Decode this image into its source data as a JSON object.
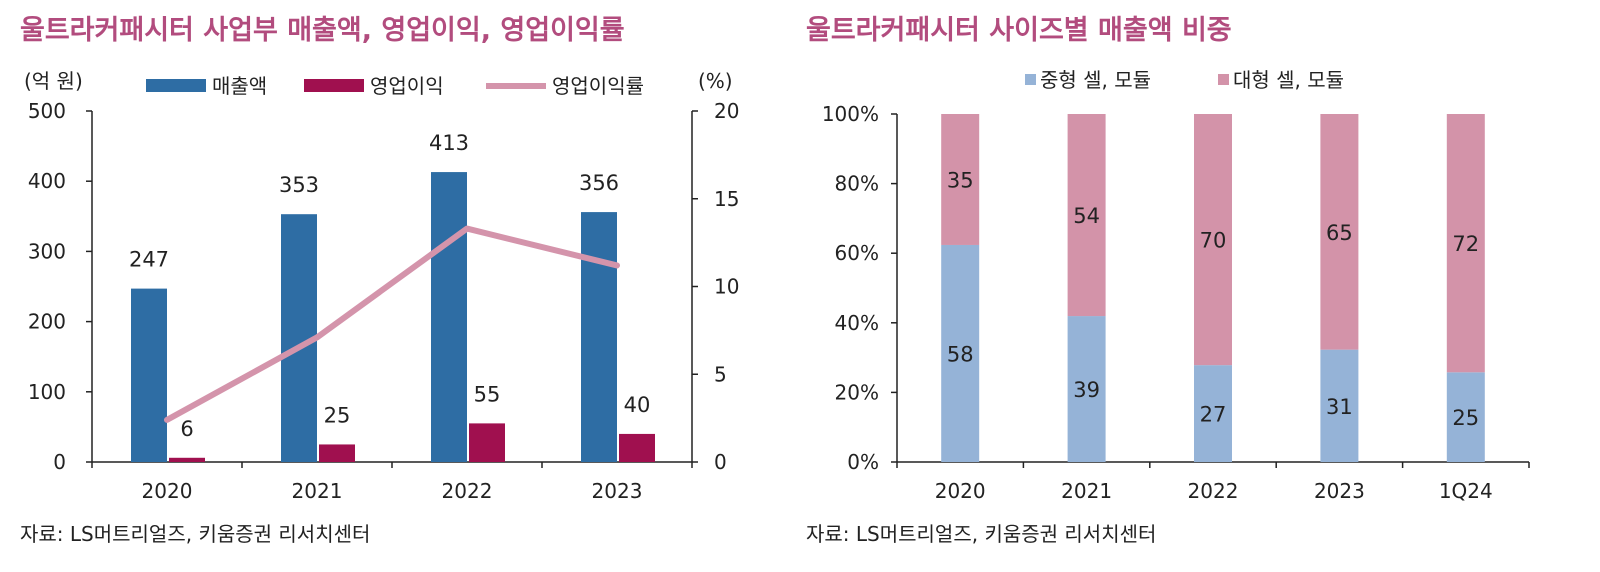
{
  "left": {
    "title": "울트라커패시터 사업부 매출액, 영업이익, 영업이익률",
    "source": "자료: LS머트리얼즈, 키움증권 리서치센터"
  },
  "right": {
    "title": "울트라커패시터 사이즈별 매출액 비중",
    "source": "자료: LS머트리얼즈, 키움증권 리서치센터"
  },
  "colors": {
    "title": "#b24c7e",
    "revenue": "#2e6da4",
    "op_income": "#a0104f",
    "op_margin": "#d494ab",
    "mid_cell": "#95b3d7",
    "large_cell": "#d393a9"
  },
  "chart_data": [
    {
      "type": "bar",
      "title": "울트라커패시터 사업부 매출액, 영업이익, 영업이익률",
      "categories": [
        "2020",
        "2021",
        "2022",
        "2023"
      ],
      "series": [
        {
          "name": "매출액",
          "axis": "left",
          "values": [
            247,
            353,
            413,
            356
          ],
          "labels": [
            "247",
            "353",
            "413",
            "356"
          ]
        },
        {
          "name": "영업이익",
          "axis": "left",
          "values": [
            6,
            25,
            55,
            40
          ],
          "labels": [
            "6",
            "25",
            "55",
            "40"
          ]
        },
        {
          "name": "영업이익률",
          "type": "line",
          "axis": "right",
          "values": [
            2.4,
            7.1,
            13.3,
            11.2
          ]
        }
      ],
      "ylabel": "(억 원)",
      "y2label": "(%)",
      "ylim": [
        0,
        500
      ],
      "yticks": [
        "0",
        "100",
        "200",
        "300",
        "400",
        "500"
      ],
      "y2lim": [
        0,
        20
      ],
      "y2ticks": [
        "0",
        "5",
        "10",
        "15",
        "20"
      ],
      "legend": "top-center",
      "grid": false
    },
    {
      "type": "bar",
      "stacked": true,
      "title": "울트라커패시터 사이즈별 매출액 비중",
      "categories": [
        "2020",
        "2021",
        "2022",
        "2023",
        "1Q24"
      ],
      "series": [
        {
          "name": "중형 셀, 모듈",
          "values": [
            58,
            39,
            27,
            31,
            25
          ],
          "labels": [
            "58",
            "39",
            "27",
            "31",
            "25"
          ]
        },
        {
          "name": "대형 셀, 모듈",
          "values": [
            35,
            54,
            70,
            65,
            72
          ],
          "labels": [
            "35",
            "54",
            "70",
            "65",
            "72"
          ]
        }
      ],
      "ylim": [
        0,
        100
      ],
      "yticks": [
        "0%",
        "20%",
        "40%",
        "60%",
        "80%",
        "100%"
      ],
      "legend": "top-center",
      "grid": false
    }
  ]
}
